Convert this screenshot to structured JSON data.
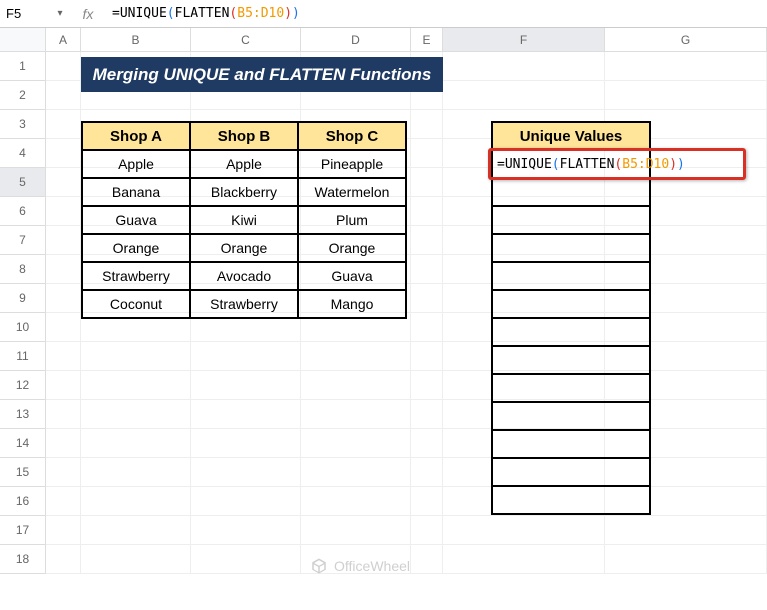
{
  "formula_bar": {
    "cell_ref": "F5",
    "formula_parts": {
      "eq": "=",
      "fn1": "UNIQUE",
      "fn2": "FLATTEN",
      "range": "B5:D10"
    }
  },
  "columns": [
    "A",
    "B",
    "C",
    "D",
    "E",
    "F",
    "G"
  ],
  "rows": [
    1,
    2,
    3,
    4,
    5,
    6,
    7,
    8,
    9,
    10,
    11,
    12,
    13,
    14,
    15,
    16,
    17,
    18
  ],
  "title_banner": "Merging UNIQUE and FLATTEN Functions",
  "table1": {
    "headers": [
      "Shop A",
      "Shop B",
      "Shop C"
    ],
    "rows": [
      [
        "Apple",
        "Apple",
        "Pineapple"
      ],
      [
        "Banana",
        "Blackberry",
        "Watermelon"
      ],
      [
        "Guava",
        "Kiwi",
        "Plum"
      ],
      [
        "Orange",
        "Orange",
        "Orange"
      ],
      [
        "Strawberry",
        "Avocado",
        "Guava"
      ],
      [
        "Coconut",
        "Strawberry",
        "Mango"
      ]
    ],
    "header_bg": "#ffe599",
    "border_color": "#000000"
  },
  "table2": {
    "header": "Unique Values",
    "rows_count": 13,
    "header_bg": "#ffe599"
  },
  "active_cell": {
    "col": "F",
    "row": 5
  },
  "watermark": "OfficeWheel",
  "colors": {
    "banner_bg": "#1f3a63",
    "banner_fg": "#ffffff",
    "highlight_border": "#d93025",
    "fm_range": "#f29900",
    "fm_paren1": "#1a73e8",
    "fm_paren2": "#d93025"
  }
}
